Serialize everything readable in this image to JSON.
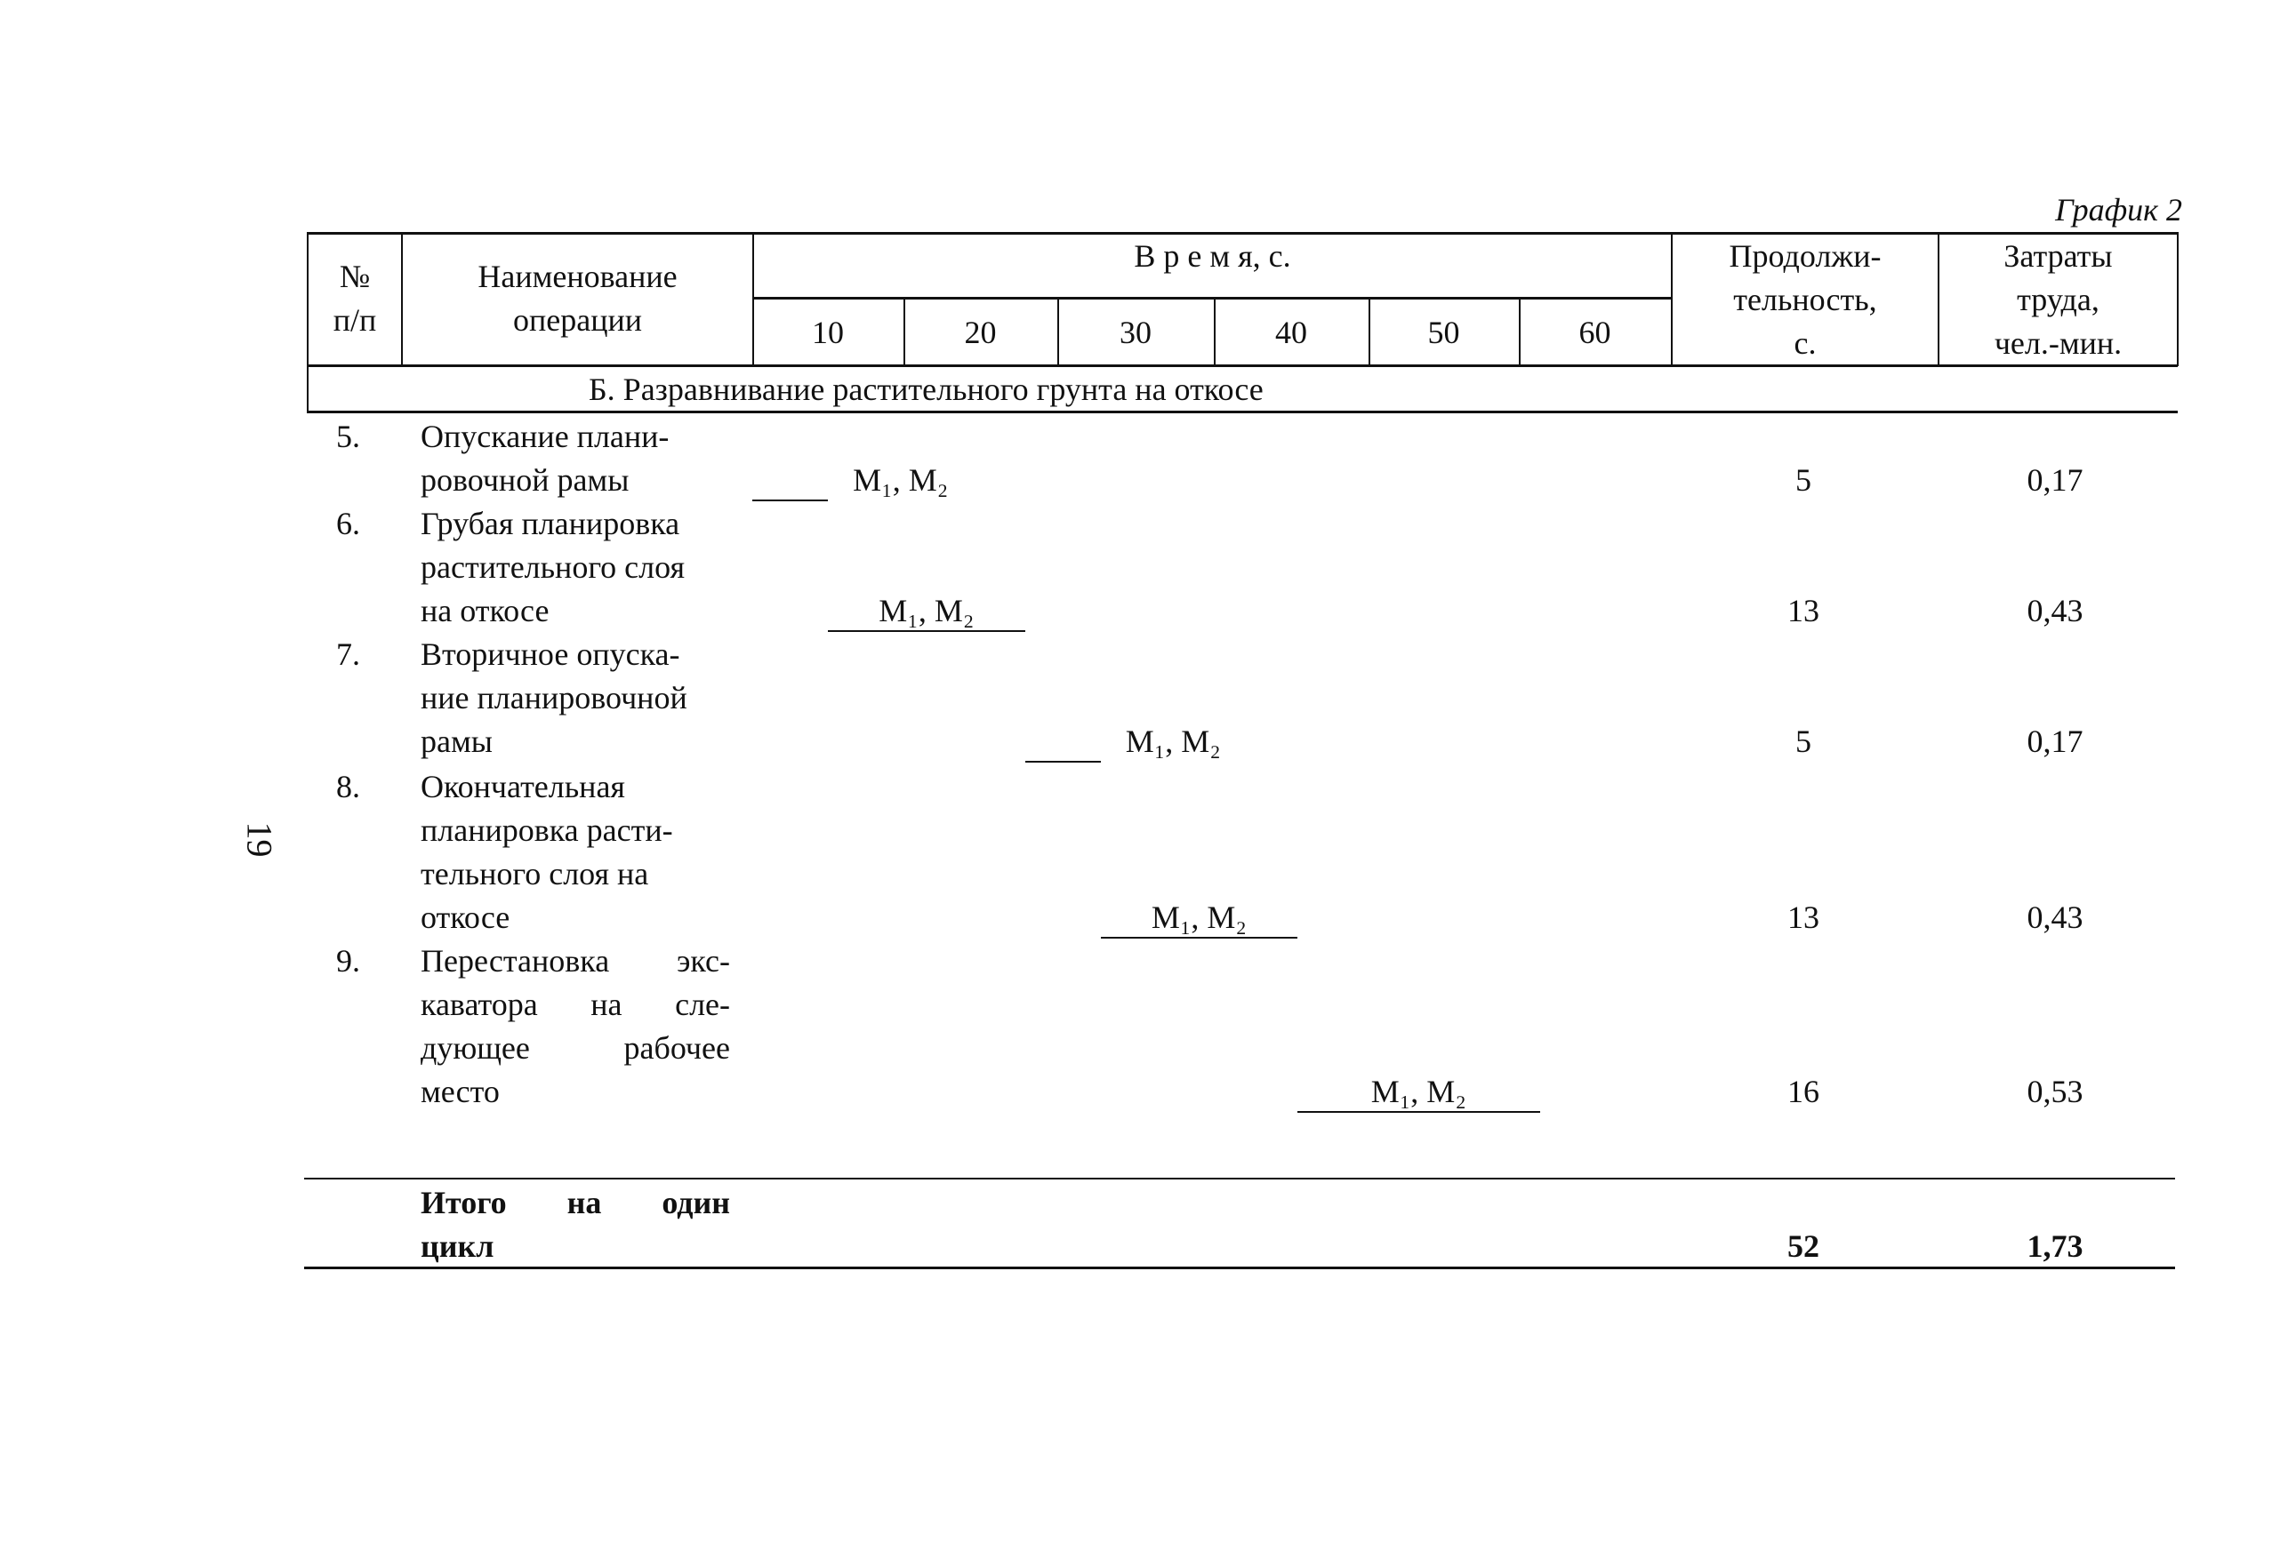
{
  "graph_label": "График 2",
  "page_number": "19",
  "header": {
    "num": [
      "№",
      "п/п"
    ],
    "name": [
      "Наименование",
      "операции"
    ],
    "time": "В р е м я, с.",
    "time_ticks": [
      "10",
      "20",
      "30",
      "40",
      "50",
      "60"
    ],
    "duration": [
      "Продолжи-",
      "тельность,",
      "с."
    ],
    "labor": [
      "Затраты",
      "труда,",
      "чел.-мин."
    ]
  },
  "section_title": "Б. Разравнивание растительного грунта на откосе",
  "rows": [
    {
      "num": "5.",
      "lines": [
        "Опускание плани-",
        "ровочной рамы"
      ],
      "start": 0,
      "duration": "5",
      "labor": "0,17",
      "bar_label": "М₁, М₂"
    },
    {
      "num": "6.",
      "lines": [
        "Грубая планировка",
        "растительного слоя",
        "на откосе"
      ],
      "start": 5,
      "duration": "13",
      "labor": "0,43",
      "bar_label": "М₁, М₂"
    },
    {
      "num": "7.",
      "lines": [
        "Вторичное опуска-",
        "ние планировочной",
        "рамы"
      ],
      "start": 18,
      "duration": "5",
      "labor": "0,17",
      "bar_label": "М₁, М₂"
    },
    {
      "num": "8.",
      "lines": [
        "Окончательная",
        "планировка расти-",
        "тельного слоя на",
        "откосе"
      ],
      "start": 23,
      "duration": "13",
      "labor": "0,43",
      "bar_label": "М₁, М₂"
    },
    {
      "num": "9.",
      "lines": [
        "Перестановка экс-",
        "каватора на сле-",
        "дующее рабочее",
        "место"
      ],
      "start": 36,
      "duration": "16",
      "labor": "0,53",
      "bar_label": "М₁, М₂"
    }
  ],
  "total": {
    "lines": [
      "Итого на один",
      "цикл"
    ],
    "duration": "52",
    "labor": "1,73"
  }
}
